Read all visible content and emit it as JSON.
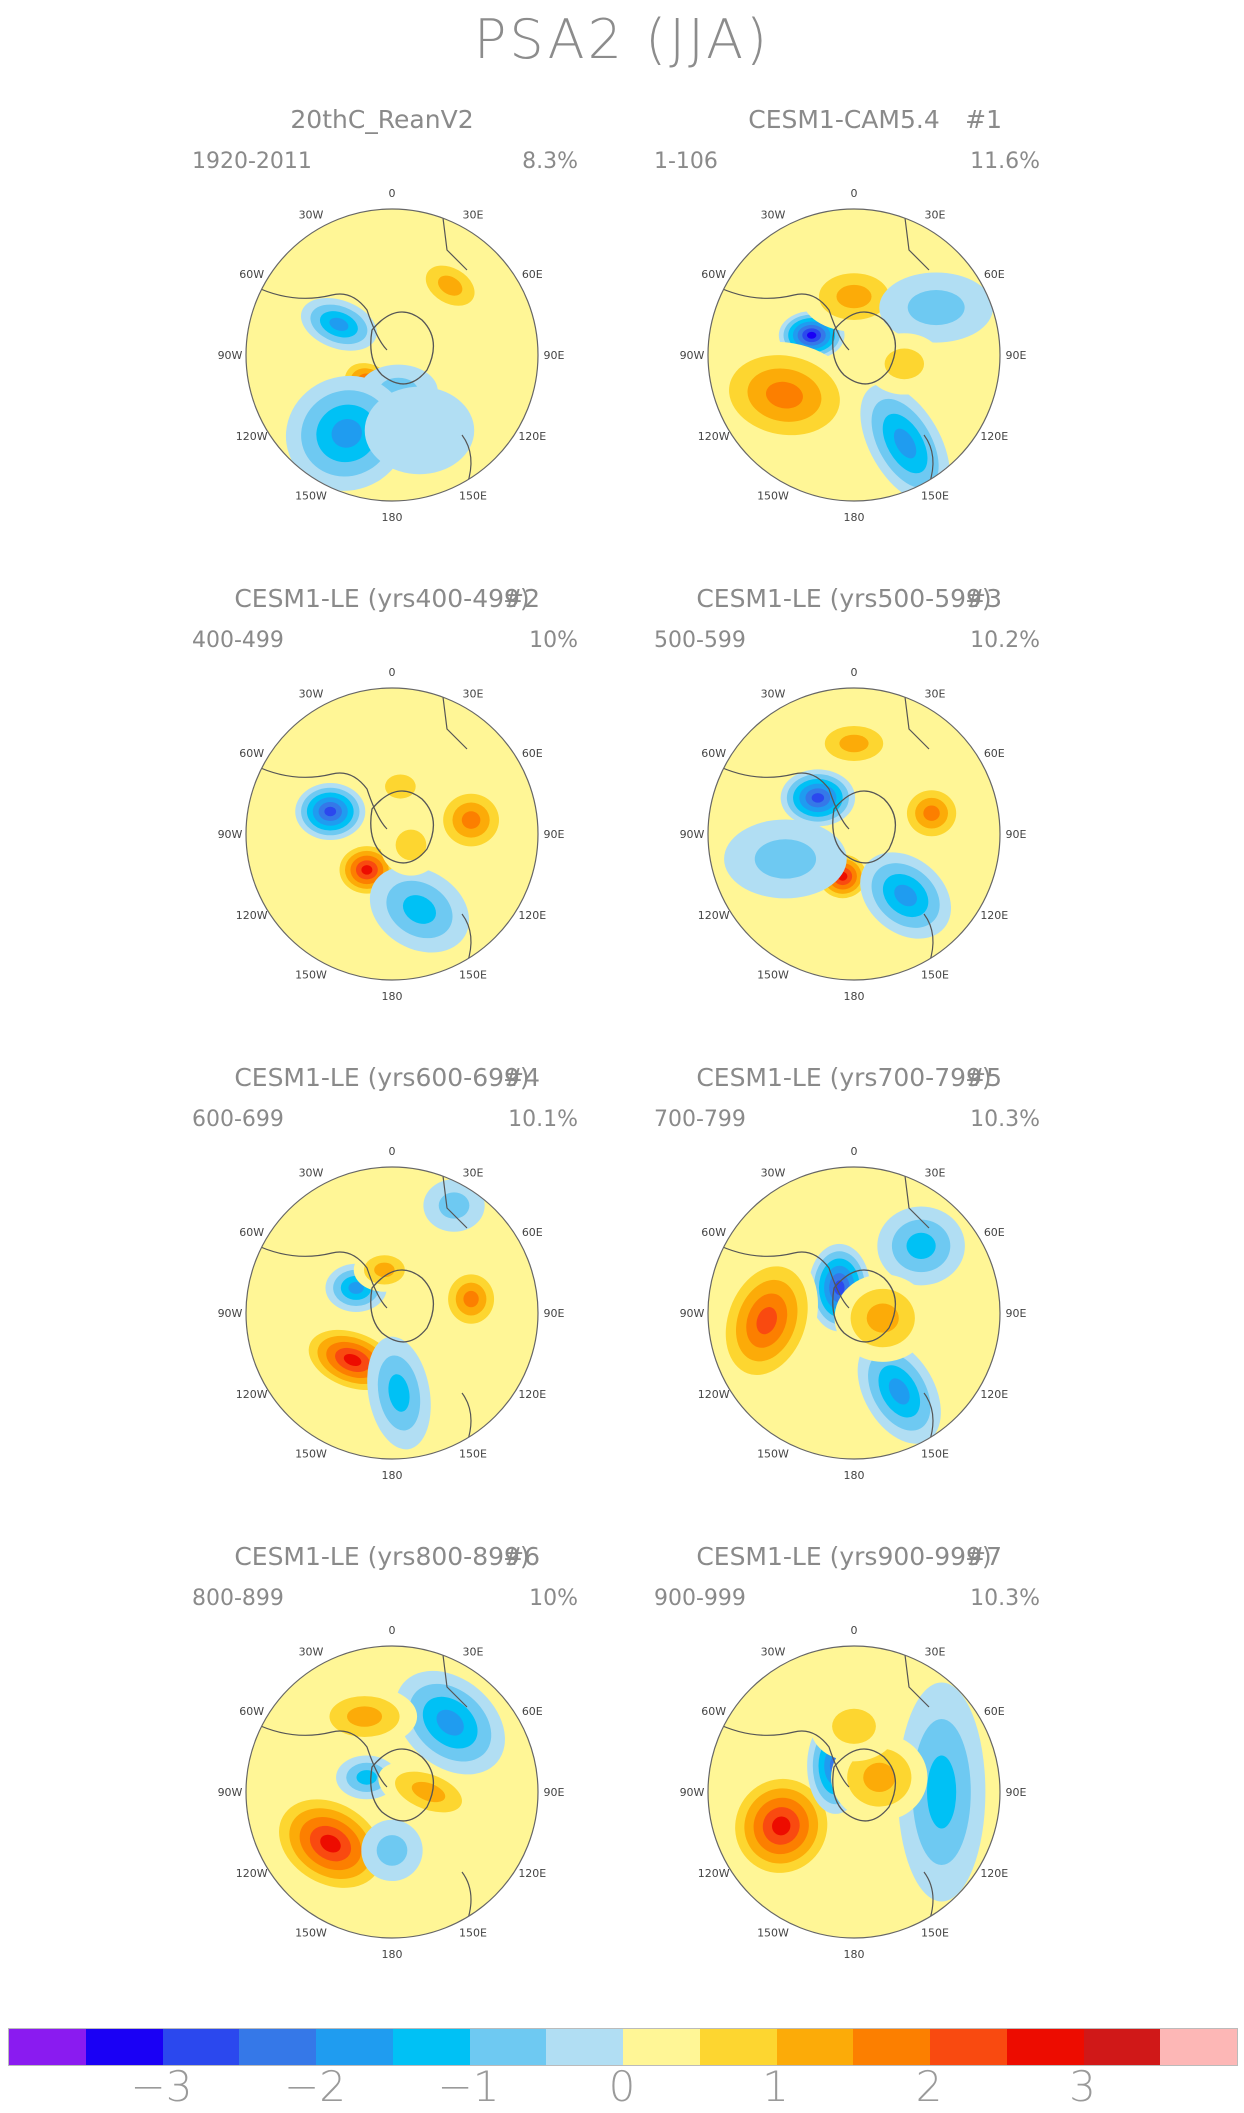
{
  "title": "PSA2 (JJA)",
  "lon_labels": [
    "0",
    "30E",
    "60E",
    "90E",
    "120E",
    "150E",
    "180",
    "150W",
    "120W",
    "90W",
    "60W",
    "30W"
  ],
  "panels": [
    {
      "title": "20thC_ReanV2",
      "num": "",
      "years": "1920-2011",
      "pct": "8.3%",
      "blobs": [
        {
          "a": 210,
          "r": 0.27,
          "w": 0.17,
          "h": 0.12,
          "v": 3.0,
          "rot": 40
        },
        {
          "a": 170,
          "r": 0.25,
          "w": 0.18,
          "h": 0.12,
          "v": -0.6,
          "rot": 0
        },
        {
          "a": 210,
          "r": 0.62,
          "w": 0.26,
          "h": 0.28,
          "v": -1.8,
          "rot": 70
        },
        {
          "a": 40,
          "r": 0.62,
          "w": 0.18,
          "h": 0.12,
          "v": 1.3,
          "rot": 30
        },
        {
          "a": 300,
          "r": 0.42,
          "w": 0.18,
          "h": 0.11,
          "v": -1.6,
          "rot": 20
        },
        {
          "a": 160,
          "r": 0.55,
          "w": 0.25,
          "h": 0.2,
          "v": -0.5,
          "rot": 0
        }
      ]
    },
    {
      "title": "CESM1-CAM5.4",
      "num": "#1",
      "years": "1-106",
      "pct": "11.6%",
      "blobs": [
        {
          "a": 295,
          "r": 0.32,
          "w": 0.15,
          "h": 0.11,
          "v": -3.1,
          "rot": 0
        },
        {
          "a": 240,
          "r": 0.55,
          "w": 0.34,
          "h": 0.24,
          "v": 2.0,
          "rot": 10
        },
        {
          "a": 0,
          "r": 0.4,
          "w": 0.24,
          "h": 0.16,
          "v": 1.2,
          "rot": 0
        },
        {
          "a": 150,
          "r": 0.7,
          "w": 0.3,
          "h": 0.16,
          "v": -1.8,
          "rot": 60
        },
        {
          "a": 60,
          "r": 0.65,
          "w": 0.26,
          "h": 0.16,
          "v": -0.8,
          "rot": 0
        },
        {
          "a": 100,
          "r": 0.35,
          "w": 0.18,
          "h": 0.14,
          "v": 1.0,
          "rot": 0
        }
      ]
    },
    {
      "title": "CESM1-LE (yrs400-499)",
      "num": "#2",
      "years": "400-499",
      "pct": "10%",
      "blobs": [
        {
          "a": 290,
          "r": 0.45,
          "w": 0.16,
          "h": 0.13,
          "v": -3.0,
          "rot": 0
        },
        {
          "a": 215,
          "r": 0.3,
          "w": 0.15,
          "h": 0.13,
          "v": 2.9,
          "rot": 0
        },
        {
          "a": 80,
          "r": 0.55,
          "w": 0.17,
          "h": 0.16,
          "v": 1.7,
          "rot": 0
        },
        {
          "a": 10,
          "r": 0.33,
          "w": 0.14,
          "h": 0.11,
          "v": 1.0,
          "rot": 0
        },
        {
          "a": 160,
          "r": 0.55,
          "w": 0.24,
          "h": 0.18,
          "v": -1.2,
          "rot": 30
        },
        {
          "a": 120,
          "r": 0.15,
          "w": 0.14,
          "h": 0.14,
          "v": 1.0,
          "rot": 0
        }
      ]
    },
    {
      "title": "CESM1-LE (yrs500-599)",
      "num": "#3",
      "years": "500-599",
      "pct": "10.2%",
      "blobs": [
        {
          "a": 315,
          "r": 0.35,
          "w": 0.17,
          "h": 0.13,
          "v": -2.8,
          "rot": 0
        },
        {
          "a": 195,
          "r": 0.3,
          "w": 0.13,
          "h": 0.12,
          "v": 3.0,
          "rot": 0
        },
        {
          "a": 140,
          "r": 0.55,
          "w": 0.23,
          "h": 0.17,
          "v": -2.0,
          "rot": 40
        },
        {
          "a": 0,
          "r": 0.62,
          "w": 0.2,
          "h": 0.12,
          "v": 1.5,
          "rot": 0
        },
        {
          "a": 75,
          "r": 0.55,
          "w": 0.15,
          "h": 0.14,
          "v": 1.6,
          "rot": 0
        },
        {
          "a": 250,
          "r": 0.5,
          "w": 0.28,
          "h": 0.18,
          "v": -0.8,
          "rot": 0
        }
      ]
    },
    {
      "title": "CESM1-LE (yrs600-699)",
      "num": "#4",
      "years": "600-699",
      "pct": "10.1%",
      "blobs": [
        {
          "a": 220,
          "r": 0.42,
          "w": 0.25,
          "h": 0.15,
          "v": 2.8,
          "rot": 20
        },
        {
          "a": 305,
          "r": 0.3,
          "w": 0.14,
          "h": 0.11,
          "v": -2.0,
          "rot": 0
        },
        {
          "a": 80,
          "r": 0.55,
          "w": 0.14,
          "h": 0.15,
          "v": 1.7,
          "rot": 0
        },
        {
          "a": 175,
          "r": 0.55,
          "w": 0.26,
          "h": 0.14,
          "v": -1.5,
          "rot": 80
        },
        {
          "a": 350,
          "r": 0.3,
          "w": 0.14,
          "h": 0.1,
          "v": 1.2,
          "rot": 0
        },
        {
          "a": 30,
          "r": 0.85,
          "w": 0.14,
          "h": 0.12,
          "v": -0.6,
          "rot": 0
        }
      ]
    },
    {
      "title": "CESM1-LE (yrs700-799)",
      "num": "#5",
      "years": "700-799",
      "pct": "10.3%",
      "blobs": [
        {
          "a": 330,
          "r": 0.2,
          "w": 0.14,
          "h": 0.2,
          "v": -2.6,
          "rot": 0
        },
        {
          "a": 265,
          "r": 0.6,
          "w": 0.22,
          "h": 0.32,
          "v": 2.4,
          "rot": 20
        },
        {
          "a": 45,
          "r": 0.65,
          "w": 0.2,
          "h": 0.18,
          "v": -1.4,
          "rot": 0
        },
        {
          "a": 150,
          "r": 0.62,
          "w": 0.26,
          "h": 0.16,
          "v": -1.6,
          "rot": 60
        },
        {
          "a": 100,
          "r": 0.2,
          "w": 0.22,
          "h": 0.2,
          "v": 1.5,
          "rot": 0
        }
      ]
    },
    {
      "title": "CESM1-LE (yrs800-899)",
      "num": "#6",
      "years": "800-899",
      "pct": "10%",
      "blobs": [
        {
          "a": 230,
          "r": 0.55,
          "w": 0.3,
          "h": 0.22,
          "v": 2.9,
          "rot": 30
        },
        {
          "a": 40,
          "r": 0.62,
          "w": 0.28,
          "h": 0.2,
          "v": -2.0,
          "rot": 40
        },
        {
          "a": 300,
          "r": 0.2,
          "w": 0.14,
          "h": 0.1,
          "v": -1.2,
          "rot": 0
        },
        {
          "a": 90,
          "r": 0.25,
          "w": 0.24,
          "h": 0.12,
          "v": 1.4,
          "rot": 20
        },
        {
          "a": 180,
          "r": 0.4,
          "w": 0.14,
          "h": 0.14,
          "v": -0.6,
          "rot": 0
        },
        {
          "a": 340,
          "r": 0.55,
          "w": 0.24,
          "h": 0.14,
          "v": 1.1,
          "rot": 0
        }
      ]
    },
    {
      "title": "CESM1-LE (yrs900-999)",
      "num": "#7",
      "years": "900-999",
      "pct": "10.3%",
      "blobs": [
        {
          "a": 245,
          "r": 0.55,
          "w": 0.25,
          "h": 0.26,
          "v": 2.6,
          "rot": 30
        },
        {
          "a": 325,
          "r": 0.22,
          "w": 0.13,
          "h": 0.22,
          "v": -2.4,
          "rot": 0
        },
        {
          "a": 90,
          "r": 0.6,
          "w": 0.2,
          "h": 0.5,
          "v": -1.5,
          "rot": 0
        },
        {
          "a": 60,
          "r": 0.2,
          "w": 0.22,
          "h": 0.2,
          "v": 1.3,
          "rot": 0
        },
        {
          "a": 0,
          "r": 0.45,
          "w": 0.2,
          "h": 0.16,
          "v": 1.0,
          "rot": 0
        }
      ]
    }
  ],
  "colorbar": {
    "colors": [
      "#8a1bf0",
      "#1a00f5",
      "#2b48ee",
      "#3578e8",
      "#1f9cf0",
      "#00c1f5",
      "#6ec9f2",
      "#b1def3",
      "#fff696",
      "#fdd630",
      "#fcab08",
      "#fc7f00",
      "#f94a10",
      "#ed0c00",
      "#d01818",
      "#fdb7b6"
    ],
    "labels": [
      "−3",
      "−2",
      "−1",
      "0",
      "1",
      "2",
      "3"
    ]
  }
}
